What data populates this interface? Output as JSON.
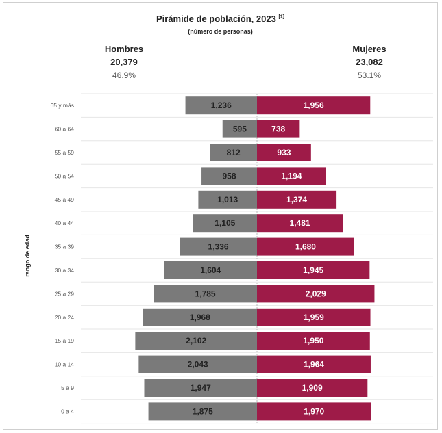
{
  "title": "Pirámide de población, 2023",
  "title_note": "[1]",
  "subtitle": "(número de personas)",
  "summary": {
    "men": {
      "label": "Hombres",
      "total": "20,379",
      "pct": "46.9%"
    },
    "women": {
      "label": "Mujeres",
      "total": "23,082",
      "pct": "53.1%"
    }
  },
  "colors": {
    "men": "#7a7a7a",
    "women": "#9e1b48"
  },
  "chart_data": {
    "type": "bar",
    "orientation": "horizontal-population-pyramid",
    "ylabel": "rango de edad",
    "categories": [
      "65 y más",
      "60 a 64",
      "55 a 59",
      "50 a 54",
      "45 a 49",
      "40 a 44",
      "35 a 39",
      "30 a 34",
      "25 a 29",
      "20 a 24",
      "15 a 19",
      "10 a 14",
      "5 a 9",
      "0 a 4"
    ],
    "series": [
      {
        "name": "Hombres",
        "values": [
          1236,
          595,
          812,
          958,
          1013,
          1105,
          1336,
          1604,
          1785,
          1968,
          2102,
          2043,
          1947,
          1875
        ],
        "labels": [
          "1,236",
          "595",
          "812",
          "958",
          "1,013",
          "1,105",
          "1,336",
          "1,604",
          "1,785",
          "1,968",
          "2,102",
          "2,043",
          "1,947",
          "1,875"
        ]
      },
      {
        "name": "Mujeres",
        "values": [
          1956,
          738,
          933,
          1194,
          1374,
          1481,
          1680,
          1945,
          2029,
          1959,
          1950,
          1964,
          1909,
          1970
        ],
        "labels": [
          "1,956",
          "738",
          "933",
          "1,194",
          "1,374",
          "1,481",
          "1,680",
          "1,945",
          "2,029",
          "1,959",
          "1,950",
          "1,964",
          "1,909",
          "1,970"
        ]
      }
    ],
    "xlim": [
      0,
      2200
    ],
    "grid": true
  }
}
